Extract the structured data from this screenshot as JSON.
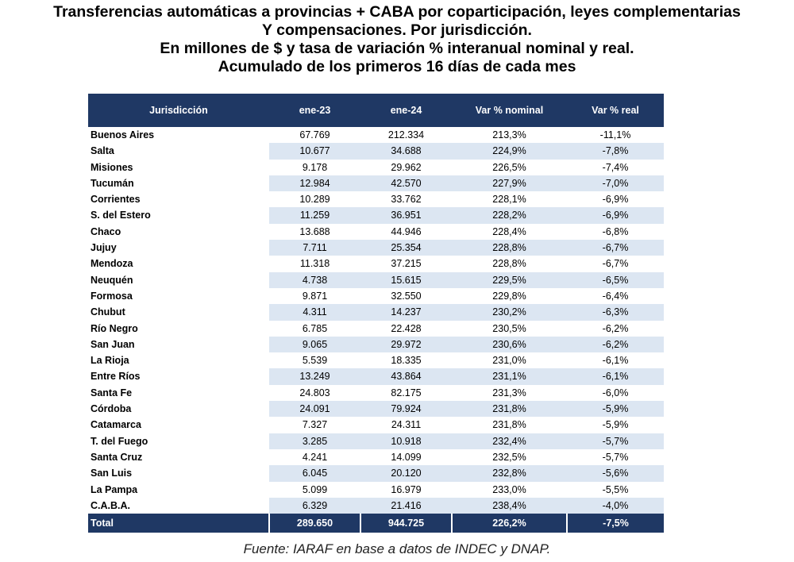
{
  "title": {
    "line1": "Transferencias automáticas a provincias + CABA por coparticipación, leyes complementarias",
    "line2": "Y compensaciones. Por jurisdicción.",
    "line3": "En millones de $ y tasa de variación % interanual nominal y real.",
    "line4": "Acumulado de los primeros 16 días de cada mes"
  },
  "table": {
    "headers": [
      "Jurisdicción",
      "ene-23",
      "ene-24",
      "Var % nominal",
      "Var % real"
    ],
    "rows": [
      [
        "Buenos Aires",
        "67.769",
        "212.334",
        "213,3%",
        "-11,1%"
      ],
      [
        "Salta",
        "10.677",
        "34.688",
        "224,9%",
        "-7,8%"
      ],
      [
        "Misiones",
        "9.178",
        "29.962",
        "226,5%",
        "-7,4%"
      ],
      [
        "Tucumán",
        "12.984",
        "42.570",
        "227,9%",
        "-7,0%"
      ],
      [
        "Corrientes",
        "10.289",
        "33.762",
        "228,1%",
        "-6,9%"
      ],
      [
        "S. del Estero",
        "11.259",
        "36.951",
        "228,2%",
        "-6,9%"
      ],
      [
        "Chaco",
        "13.688",
        "44.946",
        "228,4%",
        "-6,8%"
      ],
      [
        "Jujuy",
        "7.711",
        "25.354",
        "228,8%",
        "-6,7%"
      ],
      [
        "Mendoza",
        "11.318",
        "37.215",
        "228,8%",
        "-6,7%"
      ],
      [
        "Neuquén",
        "4.738",
        "15.615",
        "229,5%",
        "-6,5%"
      ],
      [
        "Formosa",
        "9.871",
        "32.550",
        "229,8%",
        "-6,4%"
      ],
      [
        "Chubut",
        "4.311",
        "14.237",
        "230,2%",
        "-6,3%"
      ],
      [
        "Río Negro",
        "6.785",
        "22.428",
        "230,5%",
        "-6,2%"
      ],
      [
        "San Juan",
        "9.065",
        "29.972",
        "230,6%",
        "-6,2%"
      ],
      [
        "La Rioja",
        "5.539",
        "18.335",
        "231,0%",
        "-6,1%"
      ],
      [
        "Entre Ríos",
        "13.249",
        "43.864",
        "231,1%",
        "-6,1%"
      ],
      [
        "Santa Fe",
        "24.803",
        "82.175",
        "231,3%",
        "-6,0%"
      ],
      [
        "Córdoba",
        "24.091",
        "79.924",
        "231,8%",
        "-5,9%"
      ],
      [
        "Catamarca",
        "7.327",
        "24.311",
        "231,8%",
        "-5,9%"
      ],
      [
        "T. del Fuego",
        "3.285",
        "10.918",
        "232,4%",
        "-5,7%"
      ],
      [
        "Santa Cruz",
        "4.241",
        "14.099",
        "232,5%",
        "-5,7%"
      ],
      [
        "San Luis",
        "6.045",
        "20.120",
        "232,8%",
        "-5,6%"
      ],
      [
        "La Pampa",
        "5.099",
        "16.979",
        "233,0%",
        "-5,5%"
      ],
      [
        "C.A.B.A.",
        "6.329",
        "21.416",
        "238,4%",
        "-4,0%"
      ]
    ],
    "total": [
      "Total",
      "289.650",
      "944.725",
      "226,2%",
      "-7,5%"
    ]
  },
  "source": "Fuente: IARAF en base a datos de INDEC y DNAP."
}
